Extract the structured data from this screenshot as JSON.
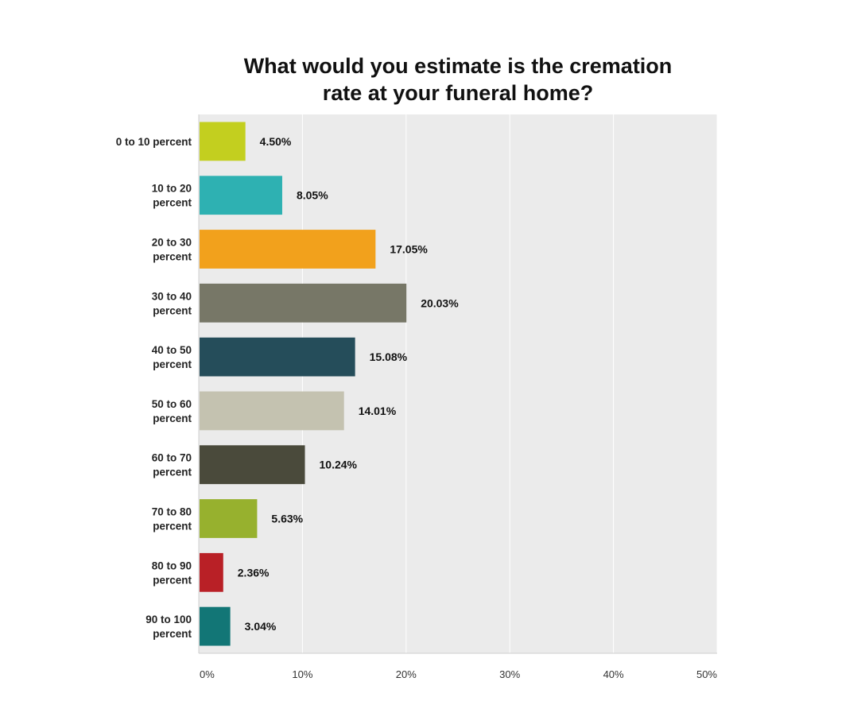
{
  "chart_data": {
    "type": "bar",
    "orientation": "horizontal",
    "title": [
      "What would you estimate is the cremation",
      "rate at your funeral home?"
    ],
    "categories": [
      [
        "0 to 10 percent"
      ],
      [
        "10 to 20",
        "percent"
      ],
      [
        "20 to 30",
        "percent"
      ],
      [
        "30 to 40",
        "percent"
      ],
      [
        "40 to 50",
        "percent"
      ],
      [
        "50 to 60",
        "percent"
      ],
      [
        "60 to 70",
        "percent"
      ],
      [
        "70 to 80",
        "percent"
      ],
      [
        "80 to 90",
        "percent"
      ],
      [
        "90 to 100",
        "percent"
      ]
    ],
    "values": [
      4.5,
      8.05,
      17.05,
      20.03,
      15.08,
      14.01,
      10.24,
      5.63,
      2.36,
      3.04
    ],
    "value_labels": [
      "4.50%",
      "8.05%",
      "17.05%",
      "20.03%",
      "15.08%",
      "14.01%",
      "10.24%",
      "5.63%",
      "2.36%",
      "3.04%"
    ],
    "colors": [
      "#c3cf1f",
      "#2eb1b2",
      "#f2a11c",
      "#777767",
      "#254d5a",
      "#c4c2b0",
      "#4a4a3b",
      "#97b12e",
      "#b92026",
      "#127676"
    ],
    "xlim": [
      0,
      50
    ],
    "xticks": [
      0,
      10,
      20,
      30,
      40,
      50
    ],
    "xtick_labels": [
      "0%",
      "10%",
      "20%",
      "30%",
      "40%",
      "50%"
    ],
    "grid": true,
    "background": "#ebebeb",
    "legend": "none"
  }
}
